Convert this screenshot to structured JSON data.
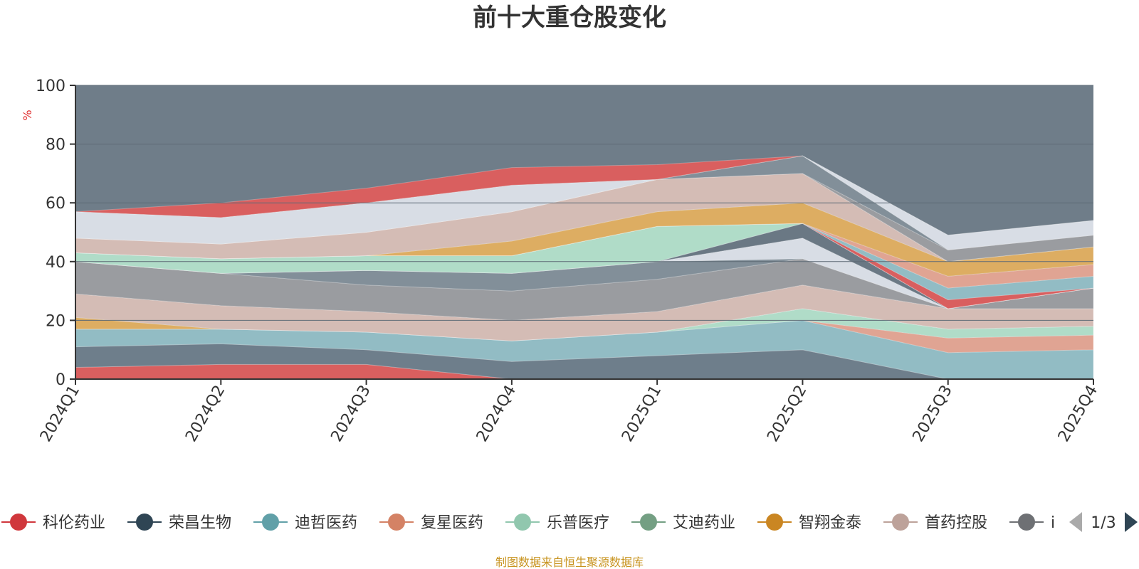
{
  "colors": {
    "background_band": "#6f7d89",
    "axis": "#333333",
    "grid": "#5e6b76"
  },
  "chart_data": {
    "type": "area",
    "stacked": true,
    "title": "前十大重仓股变化",
    "ylabel": "%",
    "ylim": [
      0,
      100
    ],
    "yticks": [
      0,
      20,
      40,
      60,
      80,
      100
    ],
    "categories": [
      "2024Q1",
      "2024Q2",
      "2024Q3",
      "2024Q4",
      "2025Q1",
      "2025Q2",
      "2025Q3",
      "2025Q4"
    ],
    "series": [
      {
        "name": "科伦药业",
        "color": "#d95f5f",
        "values": [
          4,
          5,
          5,
          0,
          0,
          0,
          0,
          0
        ]
      },
      {
        "name": "荣昌生物",
        "color": "#6e7e8b",
        "values": [
          7,
          7,
          5,
          6,
          8,
          10,
          0,
          0
        ]
      },
      {
        "name": "迪哲医药",
        "color": "#92bcc4",
        "values": [
          6,
          5,
          6,
          7,
          8,
          10,
          9,
          10
        ]
      },
      {
        "name": "复星医药",
        "color": "#e0a493",
        "values": [
          0,
          0,
          0,
          0,
          0,
          0,
          5,
          5
        ]
      },
      {
        "name": "乐普医疗",
        "color": "#b0dcc8",
        "values": [
          0,
          0,
          0,
          0,
          0,
          4,
          3,
          3
        ]
      },
      {
        "name": "智翔金泰",
        "color": "#ddad62",
        "values": [
          4,
          0,
          0,
          0,
          0,
          0,
          0,
          0
        ]
      },
      {
        "name": "首药控股",
        "color": "#d4bcb5",
        "values": [
          8,
          8,
          7,
          7,
          7,
          8,
          7,
          6
        ]
      },
      {
        "name": "",
        "color": "#9a9ca0",
        "values": [
          11,
          11,
          9,
          10,
          11,
          9,
          0,
          7
        ]
      },
      {
        "name": "",
        "color": "#828f99",
        "values": [
          0,
          0,
          5,
          6,
          6,
          0,
          0,
          0
        ]
      },
      {
        "name": "",
        "color": "#d8dde5",
        "values": [
          0,
          0,
          0,
          0,
          0,
          7,
          0,
          0
        ]
      },
      {
        "name": "",
        "color": "#6a7884",
        "values": [
          0,
          0,
          0,
          0,
          0,
          5,
          0,
          0
        ]
      },
      {
        "name": "",
        "color": "#d8dde5",
        "values": [
          0,
          0,
          0,
          0,
          0,
          0,
          0,
          0
        ]
      },
      {
        "name": "",
        "color": "#b0dcc8",
        "values": [
          3,
          5,
          5,
          6,
          12,
          0,
          0,
          0
        ]
      },
      {
        "name": "",
        "color": "#d95f5f",
        "values": [
          0,
          0,
          0,
          0,
          0,
          0,
          3,
          0
        ]
      },
      {
        "name": "",
        "color": "#92bcc4",
        "values": [
          0,
          0,
          0,
          0,
          0,
          0,
          4,
          4
        ]
      },
      {
        "name": "",
        "color": "#e0a493",
        "values": [
          0,
          0,
          0,
          0,
          0,
          0,
          4,
          4
        ]
      },
      {
        "name": "",
        "color": "#ddad62",
        "values": [
          0,
          0,
          0,
          5,
          5,
          7,
          5,
          6
        ]
      },
      {
        "name": "",
        "color": "#d4bcb5",
        "values": [
          5,
          5,
          8,
          10,
          11,
          10,
          0,
          0
        ]
      },
      {
        "name": "",
        "color": "#9a9ca0",
        "values": [
          0,
          0,
          0,
          0,
          0,
          0,
          4,
          4
        ]
      },
      {
        "name": "",
        "color": "#828f99",
        "values": [
          0,
          0,
          0,
          0,
          0,
          6,
          0,
          0
        ]
      },
      {
        "name": "",
        "color": "#d8dde5",
        "values": [
          9,
          9,
          10,
          9,
          0,
          0,
          5,
          5
        ]
      },
      {
        "name": "",
        "color": "#d95f5f",
        "values": [
          0,
          5,
          5,
          6,
          5,
          0,
          0,
          0
        ]
      }
    ],
    "legend": {
      "position": "bottom",
      "items": [
        {
          "name": "科伦药业",
          "color": "#d0373c"
        },
        {
          "name": "荣昌生物",
          "color": "#2f4554"
        },
        {
          "name": "迪哲医药",
          "color": "#61a0a8"
        },
        {
          "name": "复星医药",
          "color": "#d48265"
        },
        {
          "name": "乐普医疗",
          "color": "#91c7ae"
        },
        {
          "name": "艾迪药业",
          "color": "#749f83"
        },
        {
          "name": "智翔金泰",
          "color": "#ca8622"
        },
        {
          "name": "首药控股",
          "color": "#bda29a"
        },
        {
          "name": "i",
          "color": "#6e7074"
        }
      ],
      "page": "1/3"
    },
    "source": "制图数据来自恒生聚源数据库"
  }
}
